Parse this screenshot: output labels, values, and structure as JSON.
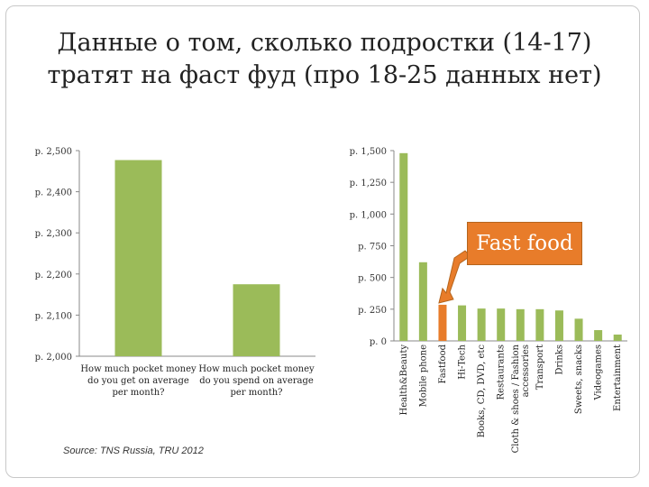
{
  "title": "Данные о том, сколько подростки (14-17) тратят на фаст фуд (про 18-25 данных нет)",
  "source": "Source: TNS Russia, TRU 2012",
  "callout": "Fast food",
  "colors": {
    "bar": "#9bbb59",
    "highlight": "#e87c2a",
    "axis": "#888888"
  },
  "chart_data": [
    {
      "type": "bar",
      "categories": [
        "How much pocket money do you get on average per month?",
        "How much pocket money do you spend on average per month?"
      ],
      "values": [
        2477,
        2175
      ],
      "ylim": [
        2000,
        2500
      ],
      "yticks": [
        "р. 2,000",
        "р. 2,100",
        "р. 2,200",
        "р. 2,300",
        "р. 2,400",
        "р. 2,500"
      ],
      "xlabel": "",
      "ylabel": ""
    },
    {
      "type": "bar",
      "categories": [
        "Health&Beauty",
        "Mobile phone",
        "Fastfood",
        "Hi-Tech",
        "Books, CD, DVD, etc",
        "Restaurants",
        "Cloth & shoes / Fashion accessories",
        "Transport",
        "Drinks",
        "Sweets, snacks",
        "Videogames",
        "Entertainment"
      ],
      "values": [
        1480,
        620,
        285,
        280,
        255,
        255,
        250,
        250,
        240,
        175,
        85,
        50
      ],
      "highlight": "Fastfood",
      "ylim": [
        0,
        1500
      ],
      "yticks": [
        "р. 0",
        "р. 250",
        "р. 500",
        "р. 750",
        "р. 1,000",
        "р. 1,250",
        "р. 1,500"
      ],
      "xlabel": "",
      "ylabel": ""
    }
  ]
}
